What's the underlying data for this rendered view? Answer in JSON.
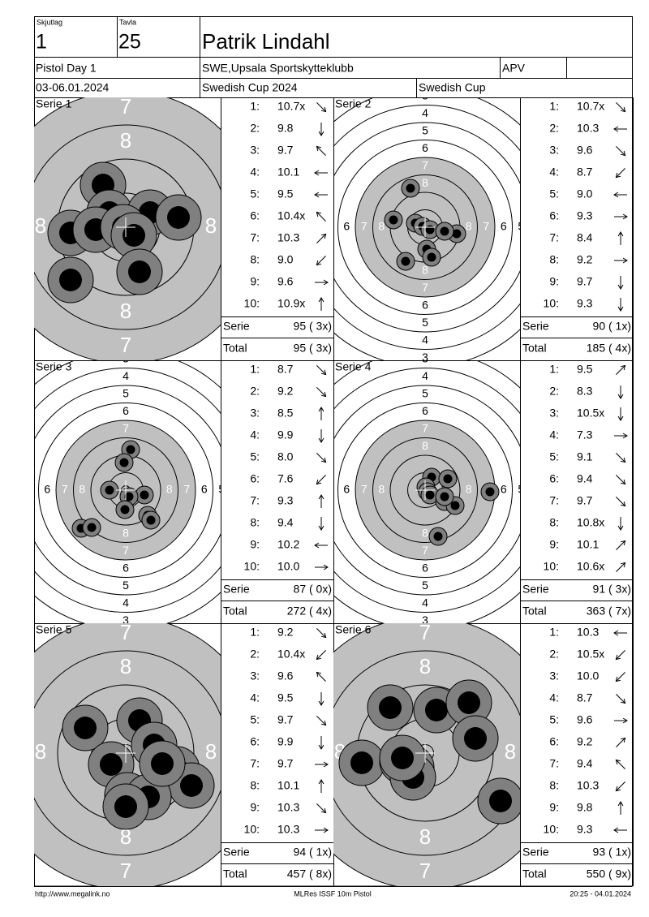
{
  "header": {
    "squad_label": "Skjutlag",
    "squad": "1",
    "target_label": "Tavla",
    "target": "25",
    "name": "Patrik Lindahl",
    "event": "Pistol Day 1",
    "club": "SWE,Upsala Sportskytteklubb",
    "class": "APV",
    "dates": "03-06.01.2024",
    "competition": "Swedish Cup 2024",
    "cup": "Swedish Cup"
  },
  "ring_labels": {
    "zoom": [
      "7",
      "8"
    ],
    "wide": [
      "3",
      "4",
      "5",
      "6",
      "7",
      "8"
    ]
  },
  "shot_numbers": [
    "1:",
    "2:",
    "3:",
    "4:",
    "5:",
    "6:",
    "7:",
    "8:",
    "9:",
    "10:"
  ],
  "series": [
    {
      "label": "Serie 1",
      "scores": [
        "10.7x",
        "9.8",
        "9.7",
        "10.1",
        "9.5",
        "10.4x",
        "10.3",
        "9.0",
        "9.6",
        "10.9x"
      ],
      "serie_label": "Serie",
      "serie_score": "95 ( 3x)",
      "total_label": "Total",
      "total_score": "95 ( 3x)"
    },
    {
      "label": "Serie 2",
      "scores": [
        "10.7x",
        "10.3",
        "9.6",
        "8.7",
        "9.0",
        "9.3",
        "8.4",
        "9.2",
        "9.7",
        "9.3"
      ],
      "serie_label": "Serie",
      "serie_score": "90 ( 1x)",
      "total_label": "Total",
      "total_score": "185 ( 4x)"
    },
    {
      "label": "Serie 3",
      "scores": [
        "8.7",
        "9.2",
        "8.5",
        "9.9",
        "8.0",
        "7.6",
        "9.3",
        "9.4",
        "10.2",
        "10.0"
      ],
      "serie_label": "Serie",
      "serie_score": "87 ( 0x)",
      "total_label": "Total",
      "total_score": "272 ( 4x)"
    },
    {
      "label": "Serie 4",
      "scores": [
        "9.5",
        "8.3",
        "10.5x",
        "7.3",
        "9.1",
        "9.4",
        "9.7",
        "10.8x",
        "10.1",
        "10.6x"
      ],
      "serie_label": "Serie",
      "serie_score": "91 ( 3x)",
      "total_label": "Total",
      "total_score": "363 ( 7x)"
    },
    {
      "label": "Serie 5",
      "scores": [
        "9.2",
        "10.4x",
        "9.6",
        "9.5",
        "9.7",
        "9.9",
        "9.7",
        "10.1",
        "10.3",
        "10.3"
      ],
      "serie_label": "Serie",
      "serie_score": "94 ( 1x)",
      "total_label": "Total",
      "total_score": "457 ( 8x)"
    },
    {
      "label": "Serie 6",
      "scores": [
        "10.3",
        "10.5x",
        "10.0",
        "8.7",
        "9.6",
        "9.2",
        "9.4",
        "10.3",
        "9.8",
        "9.3"
      ],
      "serie_label": "Serie",
      "serie_score": "93 ( 1x)",
      "total_label": "Total",
      "total_score": "550 ( 9x)"
    }
  ],
  "footer": {
    "left": "http://www.megalink.no",
    "center": "MLRes ISSF 10m Pistol",
    "right": "20:25 - 04.01.2024"
  }
}
